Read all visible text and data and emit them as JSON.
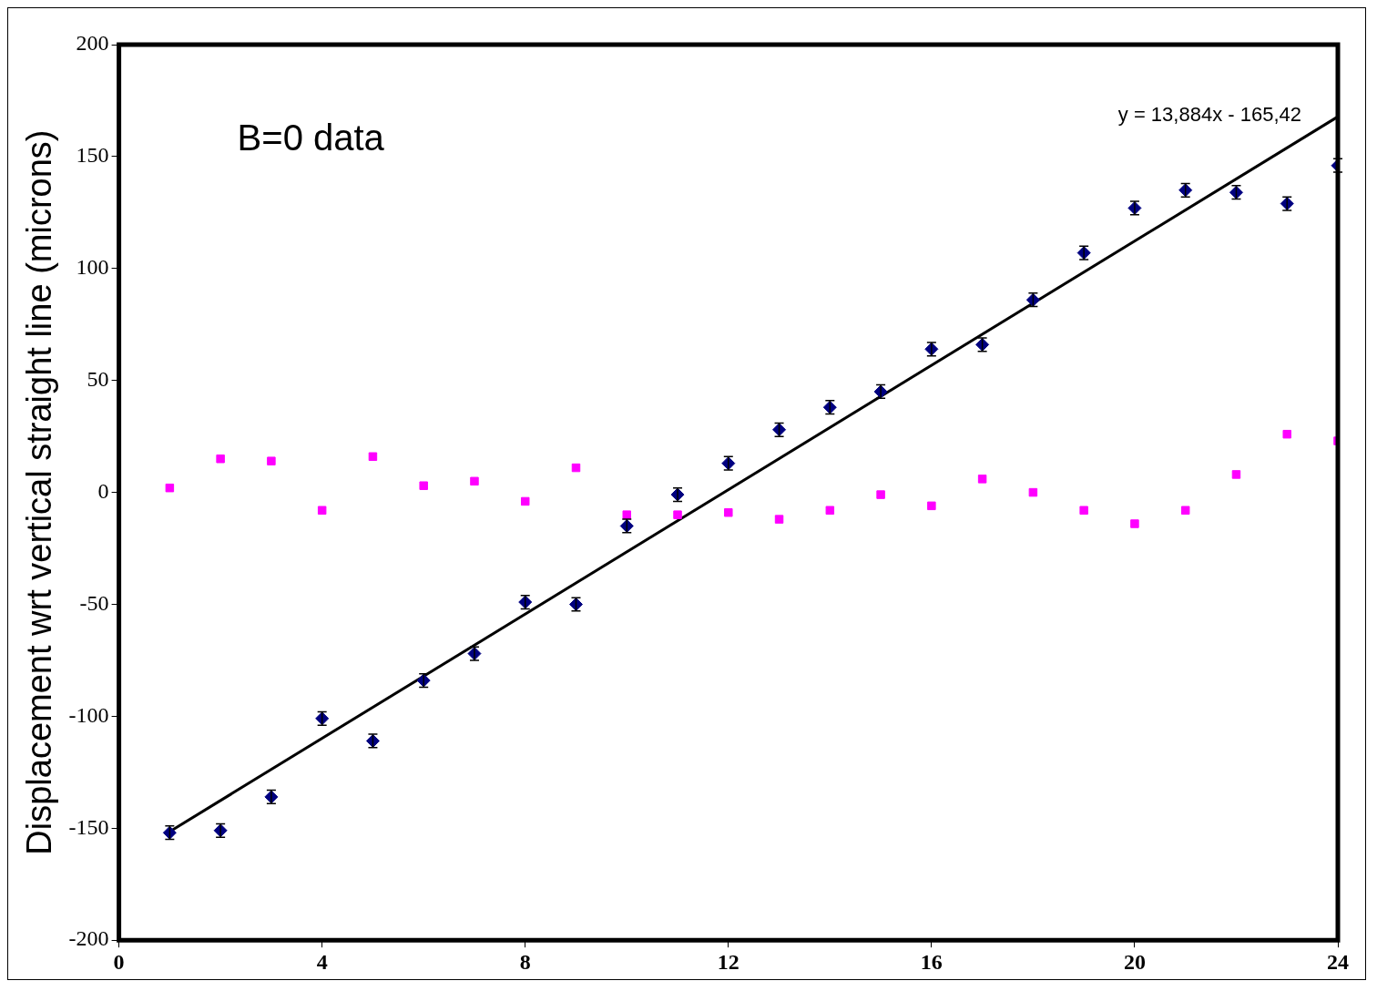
{
  "chart_data": {
    "type": "scatter",
    "ylabel": "Displacement wrt vertical straight line (microns)",
    "annotations": [
      "B=0 data",
      "y = 13,884x - 165,42"
    ],
    "xlim": [
      0,
      24
    ],
    "xticks": [
      0,
      4,
      8,
      12,
      16,
      20,
      24
    ],
    "ylim": [
      -200,
      200
    ],
    "yticks": [
      -200,
      -150,
      -100,
      -50,
      0,
      50,
      100,
      150,
      200
    ],
    "grid": false,
    "legend": false,
    "series": [
      {
        "type": "scatter",
        "marker": "diamond",
        "color": "#000080",
        "x": [
          1,
          2,
          3,
          4,
          5,
          6,
          7,
          8,
          9,
          10,
          11,
          12,
          13,
          14,
          15,
          16,
          17,
          18,
          19,
          20,
          21,
          22,
          23,
          24
        ],
        "values": [
          -152,
          -151,
          -136,
          -101,
          -111,
          -84,
          -72,
          -49,
          -50,
          -15,
          -1,
          13,
          28,
          38,
          45,
          64,
          66,
          86,
          107,
          127,
          135,
          134,
          129,
          146
        ],
        "errors": [
          3,
          3,
          3,
          3,
          3,
          3,
          3,
          3,
          3,
          3,
          3,
          3,
          3,
          3,
          3,
          3,
          3,
          3,
          3,
          3,
          3,
          3,
          3,
          3
        ]
      },
      {
        "type": "scatter",
        "marker": "square",
        "color": "#ff00ff",
        "x": [
          1,
          2,
          3,
          4,
          5,
          6,
          7,
          8,
          9,
          10,
          11,
          12,
          13,
          14,
          15,
          16,
          17,
          18,
          19,
          20,
          21,
          22,
          23,
          24
        ],
        "values": [
          2,
          15,
          14,
          -8,
          16,
          3,
          5,
          -4,
          11,
          -10,
          -10,
          -9,
          -12,
          -8,
          -1,
          -6,
          6,
          0,
          -8,
          -14,
          -8,
          8,
          26,
          23
        ]
      },
      {
        "type": "line",
        "line_style": "solid",
        "color": "#000000",
        "x": [
          1,
          24
        ],
        "values": [
          -151.5,
          167.8
        ]
      }
    ]
  }
}
